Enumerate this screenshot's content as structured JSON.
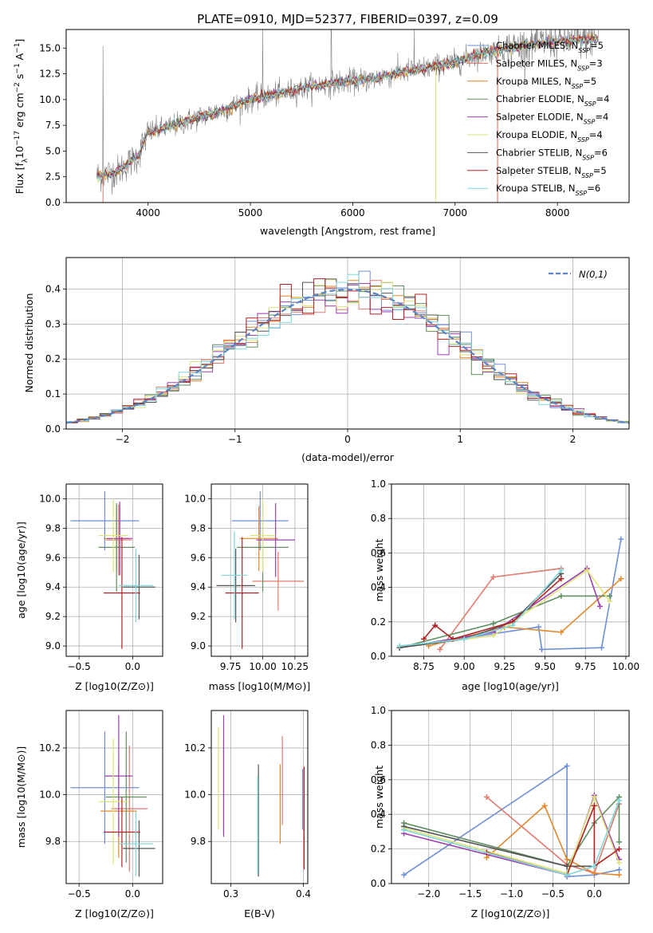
{
  "colors": {
    "Chabrier MILES": "#6e8fd8",
    "Salpeter MILES": "#e07b6d",
    "Kroupa MILES": "#e3882a",
    "Chabrier ELODIE": "#5f8f5f",
    "Salpeter ELODIE": "#9b3fb0",
    "Kroupa ELODIE": "#e0e27a",
    "Chabrier STELIB": "#555555",
    "Salpeter STELIB": "#b22222",
    "Kroupa STELIB": "#7fd8dc",
    "gaussian": "#5b84c8",
    "spectrum": "#808080",
    "grid": "#b0b0b0"
  },
  "chart_data": [
    {
      "id": "spectrum",
      "type": "line",
      "title": "PLATE=0910, MJD=52377, FIBERID=0397, z=0.09",
      "xlabel": "wavelength [Angstrom, rest frame]",
      "ylabel": "Flux [f_λ10^-17 erg cm^-2 s^-1 A^-1]",
      "xlim": [
        3200,
        8700
      ],
      "ylim": [
        0,
        16.8
      ],
      "xticks": [
        4000,
        5000,
        6000,
        7000,
        8000
      ],
      "yticks": [
        0.0,
        2.5,
        5.0,
        7.5,
        10.0,
        12.5,
        15.0
      ],
      "grid": false,
      "legend_position": "right",
      "legend": [
        {
          "name": "Chabrier MILES",
          "nssp": "5"
        },
        {
          "name": "Salpeter MILES",
          "nssp": "3"
        },
        {
          "name": "Kroupa MILES",
          "nssp": "5"
        },
        {
          "name": "Chabrier ELODIE",
          "nssp": "4"
        },
        {
          "name": "Salpeter ELODIE",
          "nssp": "4"
        },
        {
          "name": "Kroupa ELODIE",
          "nssp": "4"
        },
        {
          "name": "Chabrier STELIB",
          "nssp": "6"
        },
        {
          "name": "Salpeter STELIB",
          "nssp": "5"
        },
        {
          "name": "Kroupa STELIB",
          "nssp": "6"
        }
      ],
      "data_trend": {
        "x": [
          3500,
          3700,
          3900,
          4000,
          4200,
          4500,
          4800,
          5000,
          5300,
          5600,
          5900,
          6200,
          6500,
          6800,
          7000,
          7300,
          7600,
          7900,
          8200,
          8400
        ],
        "y": [
          2.6,
          3.0,
          4.5,
          6.8,
          7.3,
          8.3,
          9.2,
          10.0,
          10.6,
          11.3,
          11.7,
          12.0,
          12.7,
          13.2,
          13.6,
          14.6,
          15.1,
          15.6,
          15.8,
          15.9
        ]
      }
    },
    {
      "id": "residuals",
      "type": "line",
      "xlabel": "(data-model)/error",
      "ylabel": "Normed distribution",
      "xlim": [
        -2.5,
        2.5
      ],
      "ylim": [
        0,
        0.49
      ],
      "xticks": [
        -2,
        -1,
        0,
        1,
        2
      ],
      "yticks": [
        0.0,
        0.1,
        0.2,
        0.3,
        0.4
      ],
      "grid": true,
      "legend_position": "top-right",
      "legend": [
        "N(0,1)"
      ],
      "bin_width": 0.1,
      "bin_start": -2.5
    },
    {
      "id": "age_vs_Z",
      "type": "scatter",
      "xlabel": "Z [log10(Z/Z⊙)]",
      "ylabel": "age [log10(age/yr)]",
      "xlim": [
        -0.62,
        0.28
      ],
      "ylim": [
        8.93,
        10.1
      ],
      "xticks": [
        -0.5,
        0.0
      ],
      "yticks": [
        9.0,
        9.2,
        9.4,
        9.6,
        9.8,
        10.0
      ],
      "grid": true,
      "points": [
        {
          "model": "Chabrier MILES",
          "x": -0.26,
          "xerr": 0.32,
          "y": 9.85,
          "yerr": 0.2
        },
        {
          "model": "Salpeter MILES",
          "x": -0.13,
          "xerr": 0.12,
          "y": 9.72,
          "yerr": 0.24
        },
        {
          "model": "Kroupa MILES",
          "x": -0.15,
          "xerr": 0.12,
          "y": 9.73,
          "yerr": 0.22
        },
        {
          "model": "Chabrier ELODIE",
          "x": -0.15,
          "xerr": 0.17,
          "y": 9.67,
          "yerr": 0.3
        },
        {
          "model": "Salpeter ELODIE",
          "x": -0.12,
          "xerr": 0.12,
          "y": 9.73,
          "yerr": 0.25
        },
        {
          "model": "Kroupa ELODIE",
          "x": -0.18,
          "xerr": 0.14,
          "y": 9.75,
          "yerr": 0.25
        },
        {
          "model": "Chabrier STELIB",
          "x": 0.06,
          "xerr": 0.15,
          "y": 9.4,
          "yerr": 0.22
        },
        {
          "model": "Salpeter STELIB",
          "x": -0.1,
          "xerr": 0.17,
          "y": 9.36,
          "yerr": 0.38
        },
        {
          "model": "Kroupa STELIB",
          "x": 0.03,
          "xerr": 0.16,
          "y": 9.41,
          "yerr": 0.25
        }
      ]
    },
    {
      "id": "age_vs_mass",
      "type": "scatter",
      "xlabel": "mass [log10(M/M⊙)]",
      "ylabel": "",
      "xlim": [
        9.6,
        10.35
      ],
      "ylim": [
        8.93,
        10.1
      ],
      "xticks": [
        9.75,
        10.0,
        10.25
      ],
      "yticks": [
        9.0,
        9.2,
        9.4,
        9.6,
        9.8,
        10.0
      ],
      "grid": true,
      "points": [
        {
          "model": "Chabrier MILES",
          "x": 9.98,
          "xerr": 0.22,
          "y": 9.85,
          "yerr": 0.2
        },
        {
          "model": "Salpeter MILES",
          "x": 10.12,
          "xerr": 0.2,
          "y": 9.44,
          "yerr": 0.2
        },
        {
          "model": "Kroupa MILES",
          "x": 9.97,
          "xerr": 0.15,
          "y": 9.73,
          "yerr": 0.22
        },
        {
          "model": "Chabrier ELODIE",
          "x": 10.0,
          "xerr": 0.2,
          "y": 9.67,
          "yerr": 0.3
        },
        {
          "model": "Salpeter ELODIE",
          "x": 10.1,
          "xerr": 0.15,
          "y": 9.72,
          "yerr": 0.25
        },
        {
          "model": "Kroupa ELODIE",
          "x": 10.0,
          "xerr": 0.1,
          "y": 9.75,
          "yerr": 0.25
        },
        {
          "model": "Chabrier STELIB",
          "x": 9.79,
          "xerr": 0.15,
          "y": 9.41,
          "yerr": 0.25
        },
        {
          "model": "Salpeter STELIB",
          "x": 9.84,
          "xerr": 0.13,
          "y": 9.36,
          "yerr": 0.38
        },
        {
          "model": "Kroupa STELIB",
          "x": 9.78,
          "xerr": 0.1,
          "y": 9.48,
          "yerr": 0.3
        }
      ]
    },
    {
      "id": "mass_weight_vs_age",
      "type": "line",
      "xlabel": "age [log10(age/yr)]",
      "ylabel": "mass weight",
      "xlim": [
        8.55,
        10.02
      ],
      "ylim": [
        0,
        1.0
      ],
      "xticks": [
        8.75,
        9.0,
        9.25,
        9.5,
        9.75,
        10.0
      ],
      "yticks": [
        0.0,
        0.2,
        0.4,
        0.6,
        0.8,
        1.0
      ],
      "grid": true,
      "series": [
        {
          "model": "Chabrier MILES",
          "x": [
            8.6,
            9.46,
            9.48,
            9.85,
            9.97
          ],
          "y": [
            0.05,
            0.17,
            0.04,
            0.05,
            0.68
          ]
        },
        {
          "model": "Salpeter MILES",
          "x": [
            8.85,
            9.18,
            9.6
          ],
          "y": [
            0.04,
            0.46,
            0.51
          ]
        },
        {
          "model": "Kroupa MILES",
          "x": [
            8.78,
            9.25,
            9.6,
            9.97
          ],
          "y": [
            0.06,
            0.17,
            0.14,
            0.45
          ]
        },
        {
          "model": "Chabrier ELODIE",
          "x": [
            8.6,
            9.18,
            9.6,
            9.9
          ],
          "y": [
            0.05,
            0.19,
            0.35,
            0.35
          ]
        },
        {
          "model": "Salpeter ELODIE",
          "x": [
            8.6,
            9.18,
            9.76,
            9.84
          ],
          "y": [
            0.05,
            0.14,
            0.51,
            0.29
          ]
        },
        {
          "model": "Kroupa ELODIE",
          "x": [
            8.6,
            9.18,
            9.76,
            9.9
          ],
          "y": [
            0.05,
            0.12,
            0.5,
            0.32
          ]
        },
        {
          "model": "Chabrier STELIB",
          "x": [
            8.6,
            9.0,
            9.3,
            9.6
          ],
          "y": [
            0.05,
            0.1,
            0.2,
            0.48
          ]
        },
        {
          "model": "Salpeter STELIB",
          "x": [
            8.75,
            8.82,
            8.93,
            9.3,
            9.6
          ],
          "y": [
            0.1,
            0.18,
            0.1,
            0.2,
            0.45
          ]
        },
        {
          "model": "Kroupa STELIB",
          "x": [
            8.6,
            9.0,
            9.3,
            9.6
          ],
          "y": [
            0.06,
            0.1,
            0.18,
            0.5
          ]
        }
      ]
    },
    {
      "id": "mass_vs_Z",
      "type": "scatter",
      "xlabel": "Z [log10(Z/Z⊙)]",
      "ylabel": "mass [log10(M/M⊙)]",
      "xlim": [
        -0.62,
        0.28
      ],
      "ylim": [
        9.62,
        10.36
      ],
      "xticks": [
        -0.5,
        0.0
      ],
      "yticks": [
        9.8,
        10.0,
        10.2
      ],
      "grid": true,
      "points": [
        {
          "model": "Chabrier MILES",
          "x": -0.26,
          "xerr": 0.32,
          "y": 10.03,
          "yerr": 0.24
        },
        {
          "model": "Salpeter MILES",
          "x": -0.03,
          "xerr": 0.17,
          "y": 9.94,
          "yerr": 0.27
        },
        {
          "model": "Kroupa MILES",
          "x": -0.13,
          "xerr": 0.17,
          "y": 9.93,
          "yerr": 0.2
        },
        {
          "model": "Chabrier ELODIE",
          "x": -0.06,
          "xerr": 0.19,
          "y": 9.99,
          "yerr": 0.28
        },
        {
          "model": "Salpeter ELODIE",
          "x": -0.13,
          "xerr": 0.13,
          "y": 10.08,
          "yerr": 0.26
        },
        {
          "model": "Kroupa ELODIE",
          "x": -0.18,
          "xerr": 0.14,
          "y": 9.97,
          "yerr": 0.27
        },
        {
          "model": "Chabrier STELIB",
          "x": 0.06,
          "xerr": 0.15,
          "y": 9.77,
          "yerr": 0.12
        },
        {
          "model": "Salpeter STELIB",
          "x": -0.1,
          "xerr": 0.17,
          "y": 9.84,
          "yerr": 0.15
        },
        {
          "model": "Kroupa STELIB",
          "x": 0.03,
          "xerr": 0.16,
          "y": 9.79,
          "yerr": 0.14
        }
      ]
    },
    {
      "id": "mass_vs_ebv",
      "type": "scatter",
      "xlabel": "E(B-V)",
      "ylabel": "",
      "xlim": [
        0.273,
        0.406
      ],
      "ylim": [
        9.62,
        10.36
      ],
      "xticks": [
        0.3,
        0.4
      ],
      "yticks": [
        9.8,
        10.0,
        10.2
      ],
      "grid": true,
      "points": [
        {
          "model": "Chabrier MILES",
          "x": 0.399,
          "y": 9.98,
          "yerr": 0.13
        },
        {
          "model": "Salpeter MILES",
          "x": 0.371,
          "y": 10.06,
          "yerr": 0.19
        },
        {
          "model": "Kroupa MILES",
          "x": 0.368,
          "y": 9.96,
          "yerr": 0.17
        },
        {
          "model": "Chabrier ELODIE",
          "x": 0.29,
          "y": 10.03,
          "yerr": 0.2
        },
        {
          "model": "Salpeter ELODIE",
          "x": 0.29,
          "y": 10.08,
          "yerr": 0.26
        },
        {
          "model": "Kroupa ELODIE",
          "x": 0.283,
          "y": 10.07,
          "yerr": 0.22
        },
        {
          "model": "Chabrier STELIB",
          "x": 0.338,
          "y": 9.89,
          "yerr": 0.24
        },
        {
          "model": "Salpeter STELIB",
          "x": 0.401,
          "y": 9.9,
          "yerr": 0.22
        },
        {
          "model": "Kroupa STELIB",
          "x": 0.337,
          "y": 9.87,
          "yerr": 0.21
        }
      ]
    },
    {
      "id": "mass_weight_vs_Z",
      "type": "line",
      "xlabel": "Z [log10(Z/Z⊙)]",
      "ylabel": "mass weight",
      "xlim": [
        -2.45,
        0.42
      ],
      "ylim": [
        0,
        1.0
      ],
      "xticks": [
        -2.0,
        -1.5,
        -1.0,
        -0.5,
        0.0
      ],
      "yticks": [
        0.0,
        0.2,
        0.4,
        0.6,
        0.8,
        1.0
      ],
      "grid": true,
      "series": [
        {
          "model": "Chabrier MILES",
          "x": [
            -2.3,
            -0.33,
            -0.33,
            0.0,
            0.3
          ],
          "y": [
            0.05,
            0.68,
            0.04,
            0.05,
            0.08
          ]
        },
        {
          "model": "Salpeter MILES",
          "x": [
            -1.3,
            -0.33,
            0.0,
            0.3
          ],
          "y": [
            0.5,
            0.11,
            0.06,
            0.46
          ]
        },
        {
          "model": "Kroupa MILES",
          "x": [
            -1.3,
            -0.6,
            -0.33,
            0.0,
            0.3
          ],
          "y": [
            0.15,
            0.45,
            0.14,
            0.06,
            0.05
          ]
        },
        {
          "model": "Chabrier ELODIE",
          "x": [
            -2.3,
            -0.33,
            0.0,
            0.3,
            0.3
          ],
          "y": [
            0.35,
            0.1,
            0.35,
            0.5,
            0.24
          ]
        },
        {
          "model": "Salpeter ELODIE",
          "x": [
            -2.3,
            -0.33,
            0.0,
            0.3
          ],
          "y": [
            0.29,
            0.05,
            0.51,
            0.14
          ]
        },
        {
          "model": "Kroupa ELODIE",
          "x": [
            -2.3,
            -0.33,
            0.0,
            0.3
          ],
          "y": [
            0.32,
            0.06,
            0.5,
            0.12
          ]
        },
        {
          "model": "Chabrier STELIB",
          "x": [
            -2.3,
            -0.33,
            0.0
          ],
          "y": [
            0.33,
            0.1,
            0.1
          ]
        },
        {
          "model": "Salpeter STELIB",
          "x": [
            -1.3,
            -0.33,
            0.0,
            0.0,
            0.3
          ],
          "y": [
            0.18,
            0.05,
            0.45,
            0.1,
            0.2
          ]
        },
        {
          "model": "Kroupa STELIB",
          "x": [
            -2.3,
            -0.33,
            0.0,
            0.3
          ],
          "y": [
            0.31,
            0.05,
            0.1,
            0.48
          ]
        }
      ]
    }
  ]
}
